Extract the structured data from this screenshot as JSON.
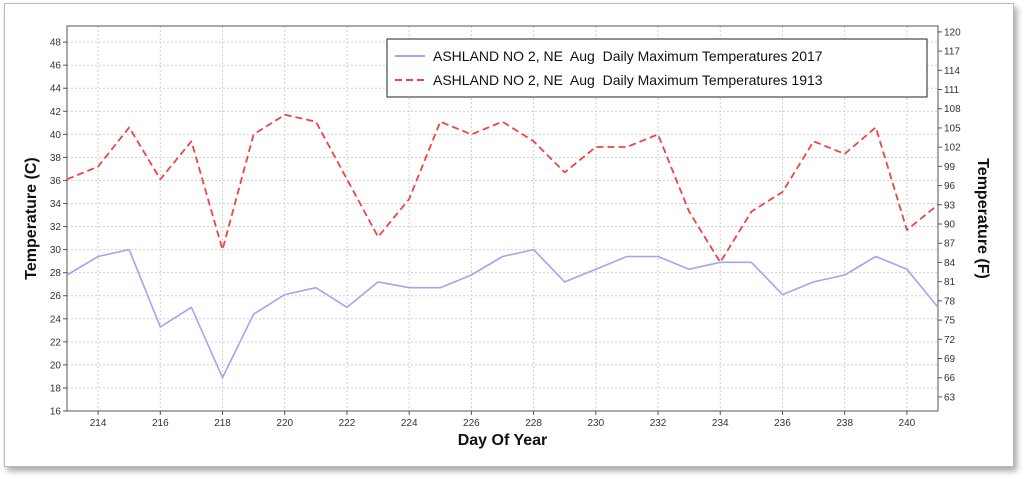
{
  "chart_data": {
    "type": "line",
    "title": "",
    "xlabel": "Day Of Year",
    "ylabel": "Temperature (C)",
    "ylabel_right": "Temperature (F)",
    "x": [
      213,
      214,
      215,
      216,
      217,
      218,
      219,
      220,
      221,
      222,
      223,
      224,
      225,
      226,
      227,
      228,
      229,
      230,
      231,
      232,
      233,
      234,
      235,
      236,
      237,
      238,
      239,
      240,
      241
    ],
    "xlim": [
      213,
      241
    ],
    "ylim": [
      16,
      49.4
    ],
    "ylim_right": [
      60.8,
      120.92
    ],
    "xticks": [
      214,
      216,
      218,
      220,
      222,
      224,
      226,
      228,
      230,
      232,
      234,
      236,
      238,
      240
    ],
    "yticks": [
      16,
      18,
      20,
      22,
      24,
      26,
      28,
      30,
      32,
      34,
      36,
      38,
      40,
      42,
      44,
      46,
      48
    ],
    "yticks_right": [
      63,
      66,
      69,
      72,
      75,
      78,
      81,
      84,
      87,
      90,
      93,
      96,
      99,
      102,
      105,
      108,
      111,
      114,
      117,
      120
    ],
    "grid": true,
    "legend_position": "top-right",
    "series": [
      {
        "name": "ASHLAND NO 2, NE  Aug  Daily Maximum Temperatures 2017",
        "color": "#a4a4f0",
        "dash": "solid",
        "values": [
          27.8,
          29.4,
          30.0,
          23.3,
          25.0,
          18.9,
          24.4,
          26.1,
          26.7,
          25.0,
          27.2,
          26.7,
          26.7,
          27.8,
          29.4,
          30.0,
          27.2,
          28.3,
          29.4,
          29.4,
          28.3,
          28.9,
          28.9,
          26.1,
          27.2,
          27.8,
          29.4,
          28.3,
          25.0
        ]
      },
      {
        "name": "ASHLAND NO 2, NE  Aug  Daily Maximum Temperatures 1913",
        "color": "#ee4444",
        "dash": "dashed",
        "values": [
          36.1,
          37.2,
          40.6,
          36.1,
          39.4,
          30.0,
          40.0,
          41.7,
          41.1,
          36.1,
          31.1,
          34.4,
          41.1,
          40.0,
          41.1,
          39.4,
          36.7,
          38.9,
          38.9,
          40.0,
          33.3,
          28.9,
          33.3,
          35.0,
          39.4,
          38.3,
          40.6,
          31.7,
          33.9
        ]
      }
    ]
  }
}
